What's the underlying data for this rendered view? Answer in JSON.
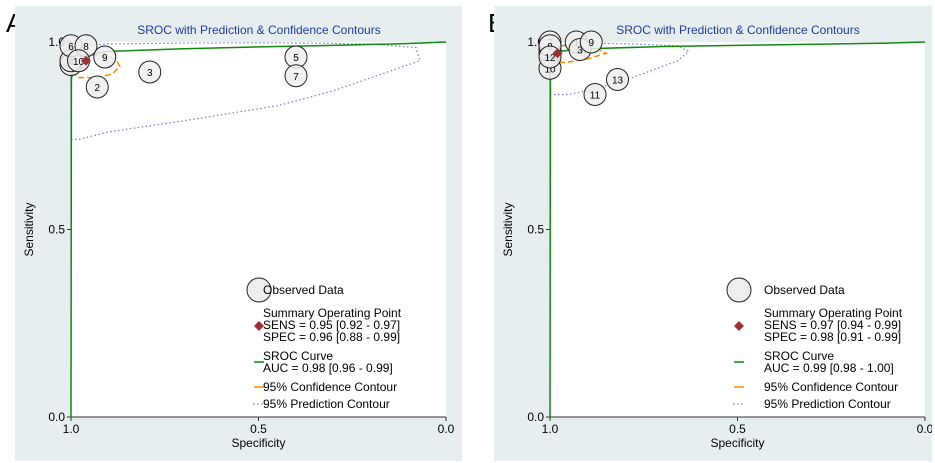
{
  "panels": [
    {
      "letter": "A",
      "title": "SROC with Prediction & Confidence Contours",
      "xlabel": "Specificity",
      "ylabel": "Sensitivity",
      "x_ticks": [
        "1.0",
        "0.5",
        "0.0"
      ],
      "y_ticks": [
        "1.0",
        "0.5",
        "0.0"
      ],
      "legend": {
        "observed": "Observed Data",
        "summary": "Summary Operating Point",
        "sens": "SENS = 0.95 [0.92 - 0.97]",
        "spec": "SPEC = 0.96 [0.88 - 0.99]",
        "sroc": "SROC Curve",
        "auc": "AUC = 0.98 [0.96 - 0.99]",
        "confidence": "95% Confidence Contour",
        "prediction": "95% Prediction Contour"
      }
    },
    {
      "letter": "B",
      "title": "SROC with Prediction & Confidence Contours",
      "xlabel": "Specificity",
      "ylabel": "Sensitivity",
      "x_ticks": [
        "1.0",
        "0.5",
        "0.0"
      ],
      "y_ticks": [
        "1.0",
        "0.5",
        "0.0"
      ],
      "legend": {
        "observed": "Observed Data",
        "summary": "Summary Operating Point",
        "sens": "SENS = 0.97 [0.94 - 0.99]",
        "spec": "SPEC = 0.98 [0.91 - 0.99]",
        "sroc": "SROC Curve",
        "auc": "AUC = 0.99 [0.98 - 1.00]",
        "confidence": "95% Confidence Contour",
        "prediction": "95% Prediction Contour"
      }
    }
  ],
  "chart_data": [
    {
      "type": "scatter",
      "title": "SROC with Prediction & Confidence Contours",
      "xlabel": "Specificity",
      "ylabel": "Sensitivity",
      "xlim": [
        1.0,
        0.0
      ],
      "ylim": [
        0.0,
        1.0
      ],
      "colors": {
        "background": "#e6eef0",
        "sroc": "#118811",
        "confidence": "#ff8800",
        "prediction": "#7777dd",
        "summary": "#993333",
        "observed_fill": "#eeeeee"
      },
      "observed": [
        {
          "label": "1",
          "spec": 1.0,
          "sens": 0.94
        },
        {
          "label": "2",
          "spec": 0.93,
          "sens": 0.88
        },
        {
          "label": "3",
          "spec": 0.79,
          "sens": 0.92
        },
        {
          "label": "4",
          "spec": 1.0,
          "sens": 0.95
        },
        {
          "label": "5",
          "spec": 0.4,
          "sens": 0.96
        },
        {
          "label": "6",
          "spec": 1.0,
          "sens": 0.99
        },
        {
          "label": "7",
          "spec": 0.4,
          "sens": 0.91
        },
        {
          "label": "8",
          "spec": 0.96,
          "sens": 0.99
        },
        {
          "label": "9",
          "spec": 0.91,
          "sens": 0.96
        },
        {
          "label": "10",
          "spec": 0.98,
          "sens": 0.95
        }
      ],
      "summary_point": {
        "sens": 0.95,
        "spec": 0.96
      },
      "sroc_curve": {
        "spec": [
          1.0,
          0.999,
          0.99,
          0.97,
          0.9,
          0.7,
          0.5,
          0.3,
          0.1,
          0.0
        ],
        "sens": [
          0.0,
          0.9,
          0.95,
          0.965,
          0.975,
          0.982,
          0.987,
          0.991,
          0.996,
          1.0
        ]
      },
      "confidence_contour": {
        "spec": [
          1.0,
          0.98,
          0.93,
          0.89,
          0.87,
          0.88,
          0.93,
          0.98,
          1.0,
          1.0
        ],
        "sens": [
          0.92,
          0.905,
          0.905,
          0.915,
          0.935,
          0.955,
          0.965,
          0.968,
          0.96,
          0.92
        ]
      },
      "prediction_contour": {
        "spec": [
          1.0,
          0.98,
          0.9,
          0.7,
          0.45,
          0.3,
          0.07,
          0.08,
          0.2,
          0.45,
          0.7,
          0.9,
          1.0
        ],
        "sens": [
          0.74,
          0.74,
          0.76,
          0.79,
          0.83,
          0.87,
          0.95,
          0.985,
          0.995,
          0.998,
          0.997,
          0.995,
          0.99
        ]
      }
    },
    {
      "type": "scatter",
      "title": "SROC with Prediction & Confidence Contours",
      "xlabel": "Specificity",
      "ylabel": "Sensitivity",
      "xlim": [
        1.0,
        0.0
      ],
      "ylim": [
        0.0,
        1.0
      ],
      "colors": {
        "background": "#e6eef0",
        "sroc": "#118811",
        "confidence": "#ff8800",
        "prediction": "#7777dd",
        "summary": "#993333",
        "observed_fill": "#eeeeee"
      },
      "observed": [
        {
          "label": "1",
          "spec": 0.93,
          "sens": 1.0
        },
        {
          "label": "2",
          "spec": 1.0,
          "sens": 0.99
        },
        {
          "label": "3",
          "spec": 0.92,
          "sens": 0.98
        },
        {
          "label": "4",
          "spec": 1.0,
          "sens": 0.99
        },
        {
          "label": "5",
          "spec": 1.0,
          "sens": 0.98
        },
        {
          "label": "6",
          "spec": 1.0,
          "sens": 0.97
        },
        {
          "label": "7",
          "spec": 1.0,
          "sens": 1.0
        },
        {
          "label": "8",
          "spec": 1.0,
          "sens": 0.99
        },
        {
          "label": "9",
          "spec": 0.89,
          "sens": 1.0
        },
        {
          "label": "10",
          "spec": 1.0,
          "sens": 0.93
        },
        {
          "label": "11",
          "spec": 0.88,
          "sens": 0.86
        },
        {
          "label": "12",
          "spec": 1.0,
          "sens": 0.96
        },
        {
          "label": "13",
          "spec": 0.82,
          "sens": 0.9
        }
      ],
      "summary_point": {
        "sens": 0.97,
        "spec": 0.98
      },
      "sroc_curve": {
        "spec": [
          1.0,
          0.999,
          0.995,
          0.98,
          0.9,
          0.7,
          0.5,
          0.3,
          0.1,
          0.0
        ],
        "sens": [
          0.0,
          0.93,
          0.96,
          0.975,
          0.982,
          0.988,
          0.991,
          0.994,
          0.997,
          1.0
        ]
      },
      "confidence_contour": {
        "spec": [
          1.0,
          0.96,
          0.9,
          0.85,
          0.87,
          0.93,
          0.98,
          1.0,
          1.0
        ],
        "sens": [
          0.95,
          0.945,
          0.955,
          0.97,
          0.98,
          0.99,
          0.99,
          0.985,
          0.95
        ]
      },
      "prediction_contour": {
        "spec": [
          1.0,
          0.95,
          0.88,
          0.78,
          0.66,
          0.63,
          0.66,
          0.78,
          0.9,
          1.0
        ],
        "sens": [
          0.86,
          0.86,
          0.875,
          0.905,
          0.95,
          0.975,
          0.99,
          0.995,
          0.997,
          0.99
        ]
      }
    }
  ]
}
